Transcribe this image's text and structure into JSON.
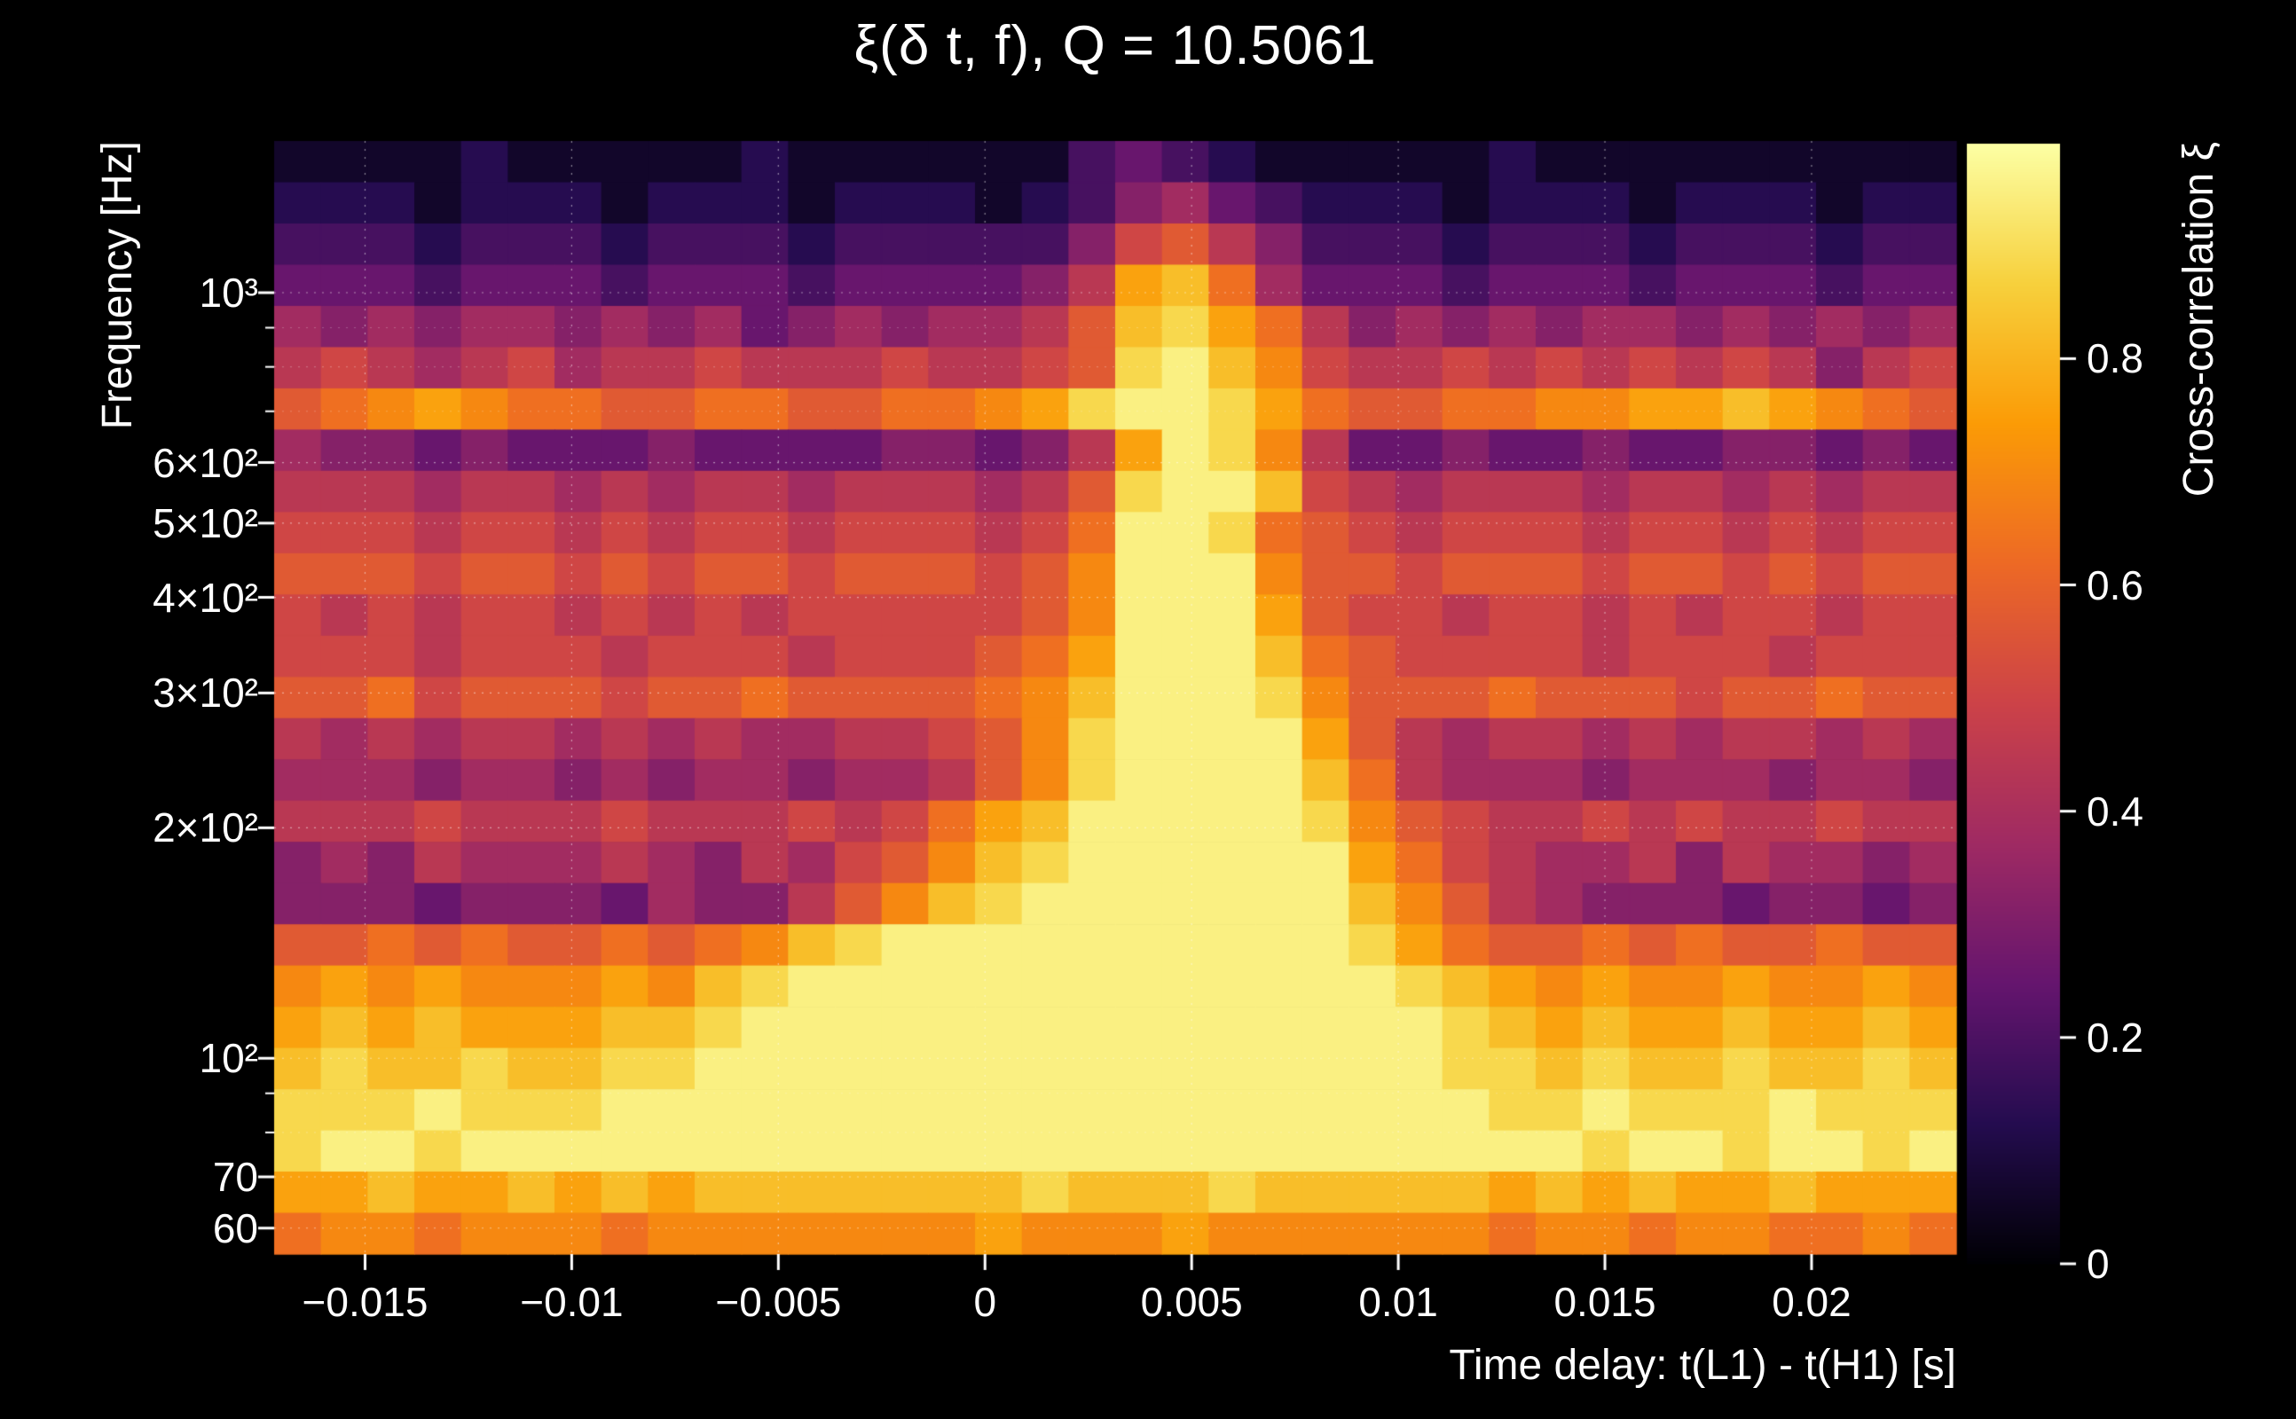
{
  "colors": {
    "background": "#000000",
    "text": "#ffffff"
  },
  "chart_data": {
    "type": "heatmap",
    "title": "ξ(δ t, f), Q = 10.5061",
    "xlabel": "Time delay: t(L1) - t(H1) [s]",
    "ylabel": "Frequency [Hz]",
    "colorbar_label": "Cross-correlation ξ",
    "x_range": [
      -0.0172,
      0.0235
    ],
    "y_range_hz": [
      55.5,
      1578
    ],
    "y_scale": "log",
    "grid_lines": "dotted white at major ticks",
    "x_ticks": [
      {
        "v": -0.015,
        "label": "−0.015"
      },
      {
        "v": -0.01,
        "label": "−0.01"
      },
      {
        "v": -0.005,
        "label": "−0.005"
      },
      {
        "v": 0,
        "label": "0"
      },
      {
        "v": 0.005,
        "label": "0.005"
      },
      {
        "v": 0.01,
        "label": "0.01"
      },
      {
        "v": 0.015,
        "label": "0.015"
      },
      {
        "v": 0.02,
        "label": "0.02"
      }
    ],
    "y_ticks": [
      {
        "v": 1000,
        "label": "10³"
      },
      {
        "v": 600,
        "label": "6×10²"
      },
      {
        "v": 500,
        "label": "5×10²"
      },
      {
        "v": 400,
        "label": "4×10²"
      },
      {
        "v": 300,
        "label": "3×10²"
      },
      {
        "v": 200,
        "label": "2×10²"
      },
      {
        "v": 100,
        "label": "10²"
      },
      {
        "v": 70,
        "label": "70"
      },
      {
        "v": 60,
        "label": "60"
      }
    ],
    "y_minor_ticks": [
      900,
      800,
      700,
      90,
      80
    ],
    "colorbar": {
      "vmin": 0,
      "vmax": 0.99,
      "position": "right",
      "ticks": [
        {
          "v": 0.8,
          "label": "0.8"
        },
        {
          "v": 0.6,
          "label": "0.6"
        },
        {
          "v": 0.4,
          "label": "0.4"
        },
        {
          "v": 0.2,
          "label": "0.2"
        },
        {
          "v": 0,
          "label": "0"
        }
      ]
    },
    "colormap": "inferno",
    "colormap_stops": [
      {
        "t": 0.0,
        "rgb": [
          0,
          0,
          4
        ]
      },
      {
        "t": 0.125,
        "rgb": [
          36,
          12,
          79
        ]
      },
      {
        "t": 0.25,
        "rgb": [
          101,
          21,
          110
        ]
      },
      {
        "t": 0.375,
        "rgb": [
          159,
          42,
          99
        ]
      },
      {
        "t": 0.5,
        "rgb": [
          204,
          66,
          72
        ]
      },
      {
        "t": 0.625,
        "rgb": [
          237,
          105,
          37
        ]
      },
      {
        "t": 0.75,
        "rgb": [
          251,
          155,
          6
        ]
      },
      {
        "t": 0.875,
        "rgb": [
          247,
          208,
          60
        ]
      },
      {
        "t": 1.0,
        "rgb": [
          252,
          255,
          164
        ]
      }
    ],
    "grid": {
      "description": "Cross-correlation ξ values on a 36 (time-delay) × 27 (log-frequency) mesh, rows listed from high frequency (≈1480 Hz) to low (≈59 Hz). Each hex digit d encodes ξ = d/15 × digit_max_value. Bright ridge at δt ≈ +0.0045 s widening toward low frequency; bright bands below ≈130 Hz and near 650 Hz; dark above ≈1100 Hz.",
      "digit_max_value": 0.95,
      "n_cols": 36,
      "n_rows": 27,
      "rows_top_to_bottom": [
        "111121111121111113432111112111111111",
        "222122212221222123564322212221222122",
        "333233323332333335897533323332333233",
        "444344434443444457CDA644434443444344",
        "656566565645656679DECA75656566565656",
        "787678677877787789EFDB87787878787578",
        "9ABCBAA99AA99AABCEFFECA99AABBCCDCBA9",
        "655454445444455457CFEB74454454455454",
        "777677676776777679EFFD87677767767677",
        "88878878788788878AFFEA98788878878788",
        "99989989899899989BFFFB99899989989899",
        "87878878787888889BFFFC98878878788788",
        "8887888788878889ACFFFDA9888878887888",
        "99A8999899A9999ABDFFFEB999A999899A99",
        "7676776767667789BEFFFFC9767767677676",
        "6665665656656679BEFFFFDA766656665665",
        "77787778777878ACDFFFFFEB987787877877",
        "56576667657689BDEFFFFFFCA87667576656",
        "5554555465579BDEFFFFFFFDB97655545545",
        "99A9A99A9ABDEFFFFFFFFFFECA99A9A99A99",
        "BCBCBBBCBDEFFFFFFFFFFFFFEDCBCBBCBBCB",
        "CDCDCCCDDEFFFFFFFFFFFFFFFEDCDCCDCCDC",
        "DEDDEDDEEFFFFFFFFFFFFFFFFEEDEDDEDDED",
        "EEEFEEEFFFFFFFFFFFFFFFFFFFEEFEEEFEEE",
        "EFFEFFFFFFFFFFFFFFFFFFFFFFFFEFFEFFEF",
        "CCDCCDCDCDDDDDDDEDDDEDDDDDCDCDCCDCCC",
        "ABBABBBABBBBBBBCBBBCBBBBBBABBABBAABA"
      ]
    }
  }
}
